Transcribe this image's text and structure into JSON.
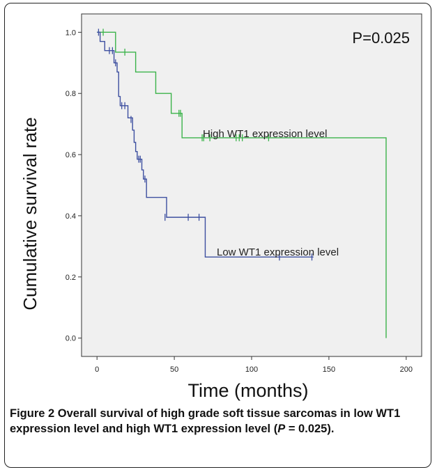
{
  "chart_data": {
    "type": "line",
    "xlabel": "Time (months)",
    "ylabel": "Cumulative survival rate",
    "xlim": [
      -10,
      210
    ],
    "ylim": [
      -0.06,
      1.06
    ],
    "xticks": [
      "0",
      "50",
      "100",
      "150",
      "200"
    ],
    "yticks": [
      "0.0",
      "0.2",
      "0.4",
      "0.6",
      "0.8",
      "1.0"
    ],
    "annotation": "P=0.025",
    "grid": false,
    "series": [
      {
        "name": "High WT1 expression level",
        "color": "#3bb34a",
        "steps": [
          [
            0,
            1.0
          ],
          [
            12,
            0.935
          ],
          [
            25,
            0.87
          ],
          [
            38,
            0.8
          ],
          [
            48,
            0.735
          ],
          [
            55,
            0.655
          ],
          [
            187,
            0.655
          ],
          [
            187,
            0.0
          ]
        ],
        "censored": [
          [
            4,
            1.0
          ],
          [
            18,
            0.935
          ],
          [
            53,
            0.735
          ],
          [
            54,
            0.735
          ],
          [
            68,
            0.655
          ],
          [
            69,
            0.655
          ],
          [
            73,
            0.655
          ],
          [
            90,
            0.655
          ],
          [
            92,
            0.655
          ],
          [
            94,
            0.655
          ],
          [
            111,
            0.655
          ]
        ]
      },
      {
        "name": "Low WT1 expression level",
        "color": "#3d4fa0",
        "steps": [
          [
            0,
            1.0
          ],
          [
            2,
            0.97
          ],
          [
            5,
            0.94
          ],
          [
            11,
            0.9
          ],
          [
            13,
            0.87
          ],
          [
            14,
            0.79
          ],
          [
            15,
            0.76
          ],
          [
            20,
            0.72
          ],
          [
            23,
            0.68
          ],
          [
            24,
            0.64
          ],
          [
            25,
            0.61
          ],
          [
            26,
            0.585
          ],
          [
            29,
            0.55
          ],
          [
            30,
            0.52
          ],
          [
            32,
            0.46
          ],
          [
            45,
            0.395
          ],
          [
            70,
            0.265
          ],
          [
            140,
            0.265
          ]
        ],
        "censored": [
          [
            1,
            1.0
          ],
          [
            8,
            0.94
          ],
          [
            10,
            0.94
          ],
          [
            12,
            0.9
          ],
          [
            16,
            0.76
          ],
          [
            18,
            0.76
          ],
          [
            22,
            0.715
          ],
          [
            27,
            0.585
          ],
          [
            28,
            0.585
          ],
          [
            31,
            0.52
          ],
          [
            44,
            0.395
          ],
          [
            59,
            0.395
          ],
          [
            66,
            0.395
          ],
          [
            118,
            0.265
          ],
          [
            139,
            0.265
          ]
        ]
      }
    ]
  },
  "caption": {
    "label": "Figure 2",
    "text": "Overall survival of high grade soft tissue sarcomas in low WT1 expression level and high WT1 expression level",
    "p_open": "(",
    "p_italic": "P",
    "p_rest": " = 0.025)."
  }
}
